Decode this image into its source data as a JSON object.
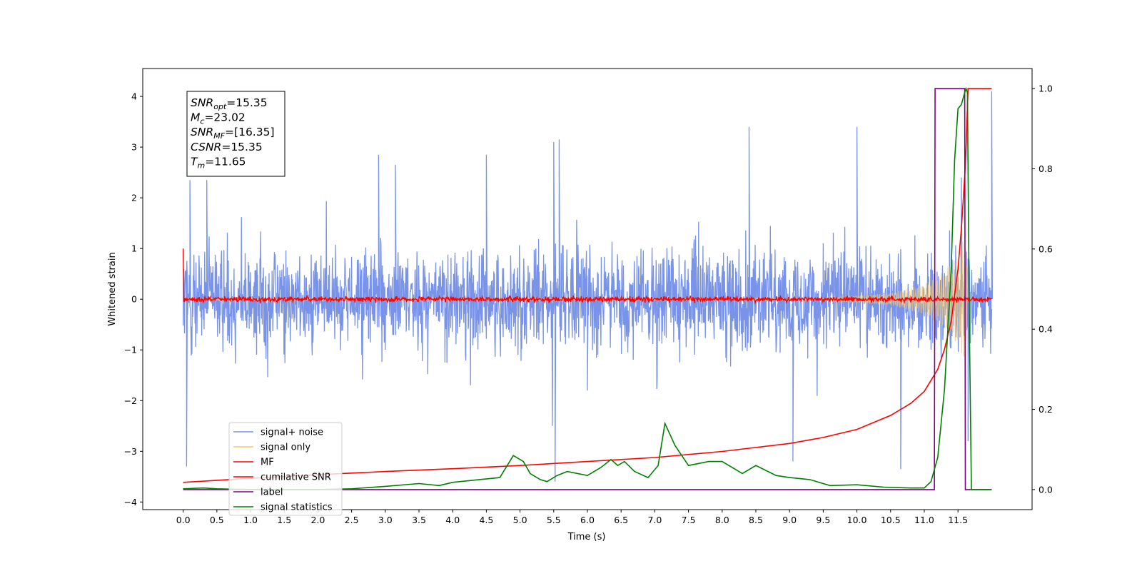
{
  "chart_data": {
    "type": "line",
    "title": "",
    "xlabel": "Time (s)",
    "ylabel": "Whitened strain",
    "xlim": [
      -0.6,
      12.6
    ],
    "ylim": [
      -4.15,
      4.55
    ],
    "y2lim": [
      -0.05,
      1.05
    ],
    "grid": false,
    "legend_position": "lower-left",
    "x_ticks": [
      0.0,
      0.5,
      1.0,
      1.5,
      2.0,
      2.5,
      3.0,
      3.5,
      4.0,
      4.5,
      5.0,
      5.5,
      6.0,
      6.5,
      7.0,
      7.5,
      8.0,
      8.5,
      9.0,
      9.5,
      10.0,
      10.5,
      11.0,
      11.5
    ],
    "x_tick_labels": [
      "0.0",
      "0.5",
      "1.0",
      "1.5",
      "2.0",
      "2.5",
      "3.0",
      "3.5",
      "4.0",
      "4.5",
      "5.0",
      "5.5",
      "6.0",
      "6.5",
      "7.0",
      "7.5",
      "8.0",
      "8.5",
      "9.0",
      "9.5",
      "10.0",
      "10.5",
      "11.0",
      "11.5"
    ],
    "y_ticks": [
      -4,
      -3,
      -2,
      -1,
      0,
      1,
      2,
      3,
      4
    ],
    "y_tick_labels": [
      "−4",
      "−3",
      "−2",
      "−1",
      "0",
      "1",
      "2",
      "3",
      "4"
    ],
    "y2_ticks": [
      0.0,
      0.2,
      0.4,
      0.6,
      0.8,
      1.0
    ],
    "y2_tick_labels": [
      "0.0",
      "0.2",
      "0.4",
      "0.6",
      "0.8",
      "1.0"
    ],
    "series": [
      {
        "name": "signal+ noise",
        "color": "#7893e8",
        "axis": "left",
        "kind": "noise",
        "x_range": [
          0.0,
          12.0
        ],
        "band_max": [
          2.4,
          -1.6
        ],
        "typical_amplitude": 1.1,
        "peaks": [
          [
            0.05,
            -3.3
          ],
          [
            0.1,
            2.35
          ],
          [
            0.35,
            2.35
          ],
          [
            2.9,
            2.85
          ],
          [
            3.15,
            2.65
          ],
          [
            4.5,
            2.85
          ],
          [
            5.5,
            3.1
          ],
          [
            5.52,
            -3.6
          ],
          [
            5.58,
            3.15
          ],
          [
            6.0,
            -1.8
          ],
          [
            8.4,
            3.4
          ],
          [
            9.05,
            -3.2
          ],
          [
            10.0,
            3.4
          ],
          [
            10.65,
            -3.35
          ],
          [
            11.55,
            2.4
          ],
          [
            11.65,
            -2.8
          ],
          [
            12.0,
            4.1
          ]
        ]
      },
      {
        "name": "signal only",
        "color": "#f5c86e",
        "axis": "left",
        "kind": "chirp",
        "x_range": [
          0.0,
          12.0
        ],
        "amplitude_points": [
          [
            9.5,
            0.03
          ],
          [
            10.5,
            0.12
          ],
          [
            11.0,
            0.3
          ],
          [
            11.3,
            0.55
          ],
          [
            11.5,
            0.9
          ],
          [
            11.62,
            1.3
          ],
          [
            11.65,
            0.0
          ]
        ]
      },
      {
        "name": "MF",
        "color": "#ff0000",
        "axis": "left",
        "kind": "noise_small",
        "x_range": [
          0.0,
          12.0
        ],
        "typical_amplitude": 0.07,
        "start_spike": [
          0.0,
          1.0
        ]
      },
      {
        "name": "cumilative SNR",
        "color": "#ff0000",
        "axis": "right",
        "x": [
          0.0,
          1.0,
          2.0,
          3.0,
          4.0,
          5.0,
          6.0,
          7.0,
          8.0,
          9.0,
          9.5,
          10.0,
          10.5,
          10.8,
          11.0,
          11.2,
          11.3,
          11.4,
          11.5,
          11.55,
          11.6,
          11.62,
          11.65,
          11.66,
          11.7,
          11.8,
          11.9,
          12.0
        ],
        "y": [
          0.018,
          0.028,
          0.037,
          0.045,
          0.052,
          0.06,
          0.07,
          0.08,
          0.095,
          0.115,
          0.13,
          0.15,
          0.185,
          0.215,
          0.245,
          0.3,
          0.35,
          0.42,
          0.55,
          0.65,
          0.78,
          0.85,
          1.0,
          1.0,
          1.0,
          1.0,
          1.0,
          1.0
        ]
      },
      {
        "name": "label",
        "color": "#800080",
        "axis": "right",
        "x": [
          0.0,
          11.15,
          11.16,
          11.6,
          11.61,
          12.0
        ],
        "y": [
          0.0,
          0.0,
          1.0,
          1.0,
          0.0,
          0.0
        ]
      },
      {
        "name": "signal statistics",
        "color": "#008000",
        "axis": "right",
        "x": [
          0.0,
          0.3,
          0.5,
          1.0,
          2.0,
          2.5,
          3.0,
          3.5,
          3.8,
          4.0,
          4.4,
          4.7,
          4.9,
          5.05,
          5.15,
          5.3,
          5.4,
          5.55,
          5.7,
          6.0,
          6.2,
          6.35,
          6.45,
          6.55,
          6.7,
          6.9,
          7.05,
          7.15,
          7.3,
          7.5,
          7.8,
          8.0,
          8.3,
          8.5,
          8.8,
          9.0,
          9.3,
          9.6,
          10.0,
          10.4,
          10.8,
          11.0,
          11.1,
          11.2,
          11.3,
          11.4,
          11.45,
          11.5,
          11.55,
          11.6,
          11.62,
          11.64,
          11.67,
          11.7,
          12.0
        ],
        "y": [
          0.002,
          0.004,
          0.002,
          0.0,
          0.0,
          0.002,
          0.008,
          0.015,
          0.01,
          0.018,
          0.025,
          0.03,
          0.085,
          0.07,
          0.04,
          0.025,
          0.02,
          0.035,
          0.045,
          0.035,
          0.055,
          0.075,
          0.06,
          0.07,
          0.045,
          0.03,
          0.06,
          0.165,
          0.11,
          0.06,
          0.07,
          0.07,
          0.04,
          0.06,
          0.035,
          0.03,
          0.025,
          0.01,
          0.012,
          0.006,
          0.004,
          0.004,
          0.02,
          0.08,
          0.25,
          0.55,
          0.82,
          0.95,
          0.96,
          0.99,
          1.0,
          0.99,
          0.4,
          0.0,
          0.0
        ]
      }
    ],
    "annotation": {
      "lines": [
        {
          "sym": "SNR",
          "sub": "opt",
          "val": "=15.35"
        },
        {
          "sym": "M",
          "sub": "c",
          "val": "=23.02"
        },
        {
          "sym": "SNR",
          "sub": "MF",
          "val": "=[16.35]"
        },
        {
          "sym": "CSNR",
          "sub": "",
          "val": "=15.35"
        },
        {
          "sym": "T",
          "sub": "m",
          "val": "=11.65"
        }
      ]
    }
  }
}
